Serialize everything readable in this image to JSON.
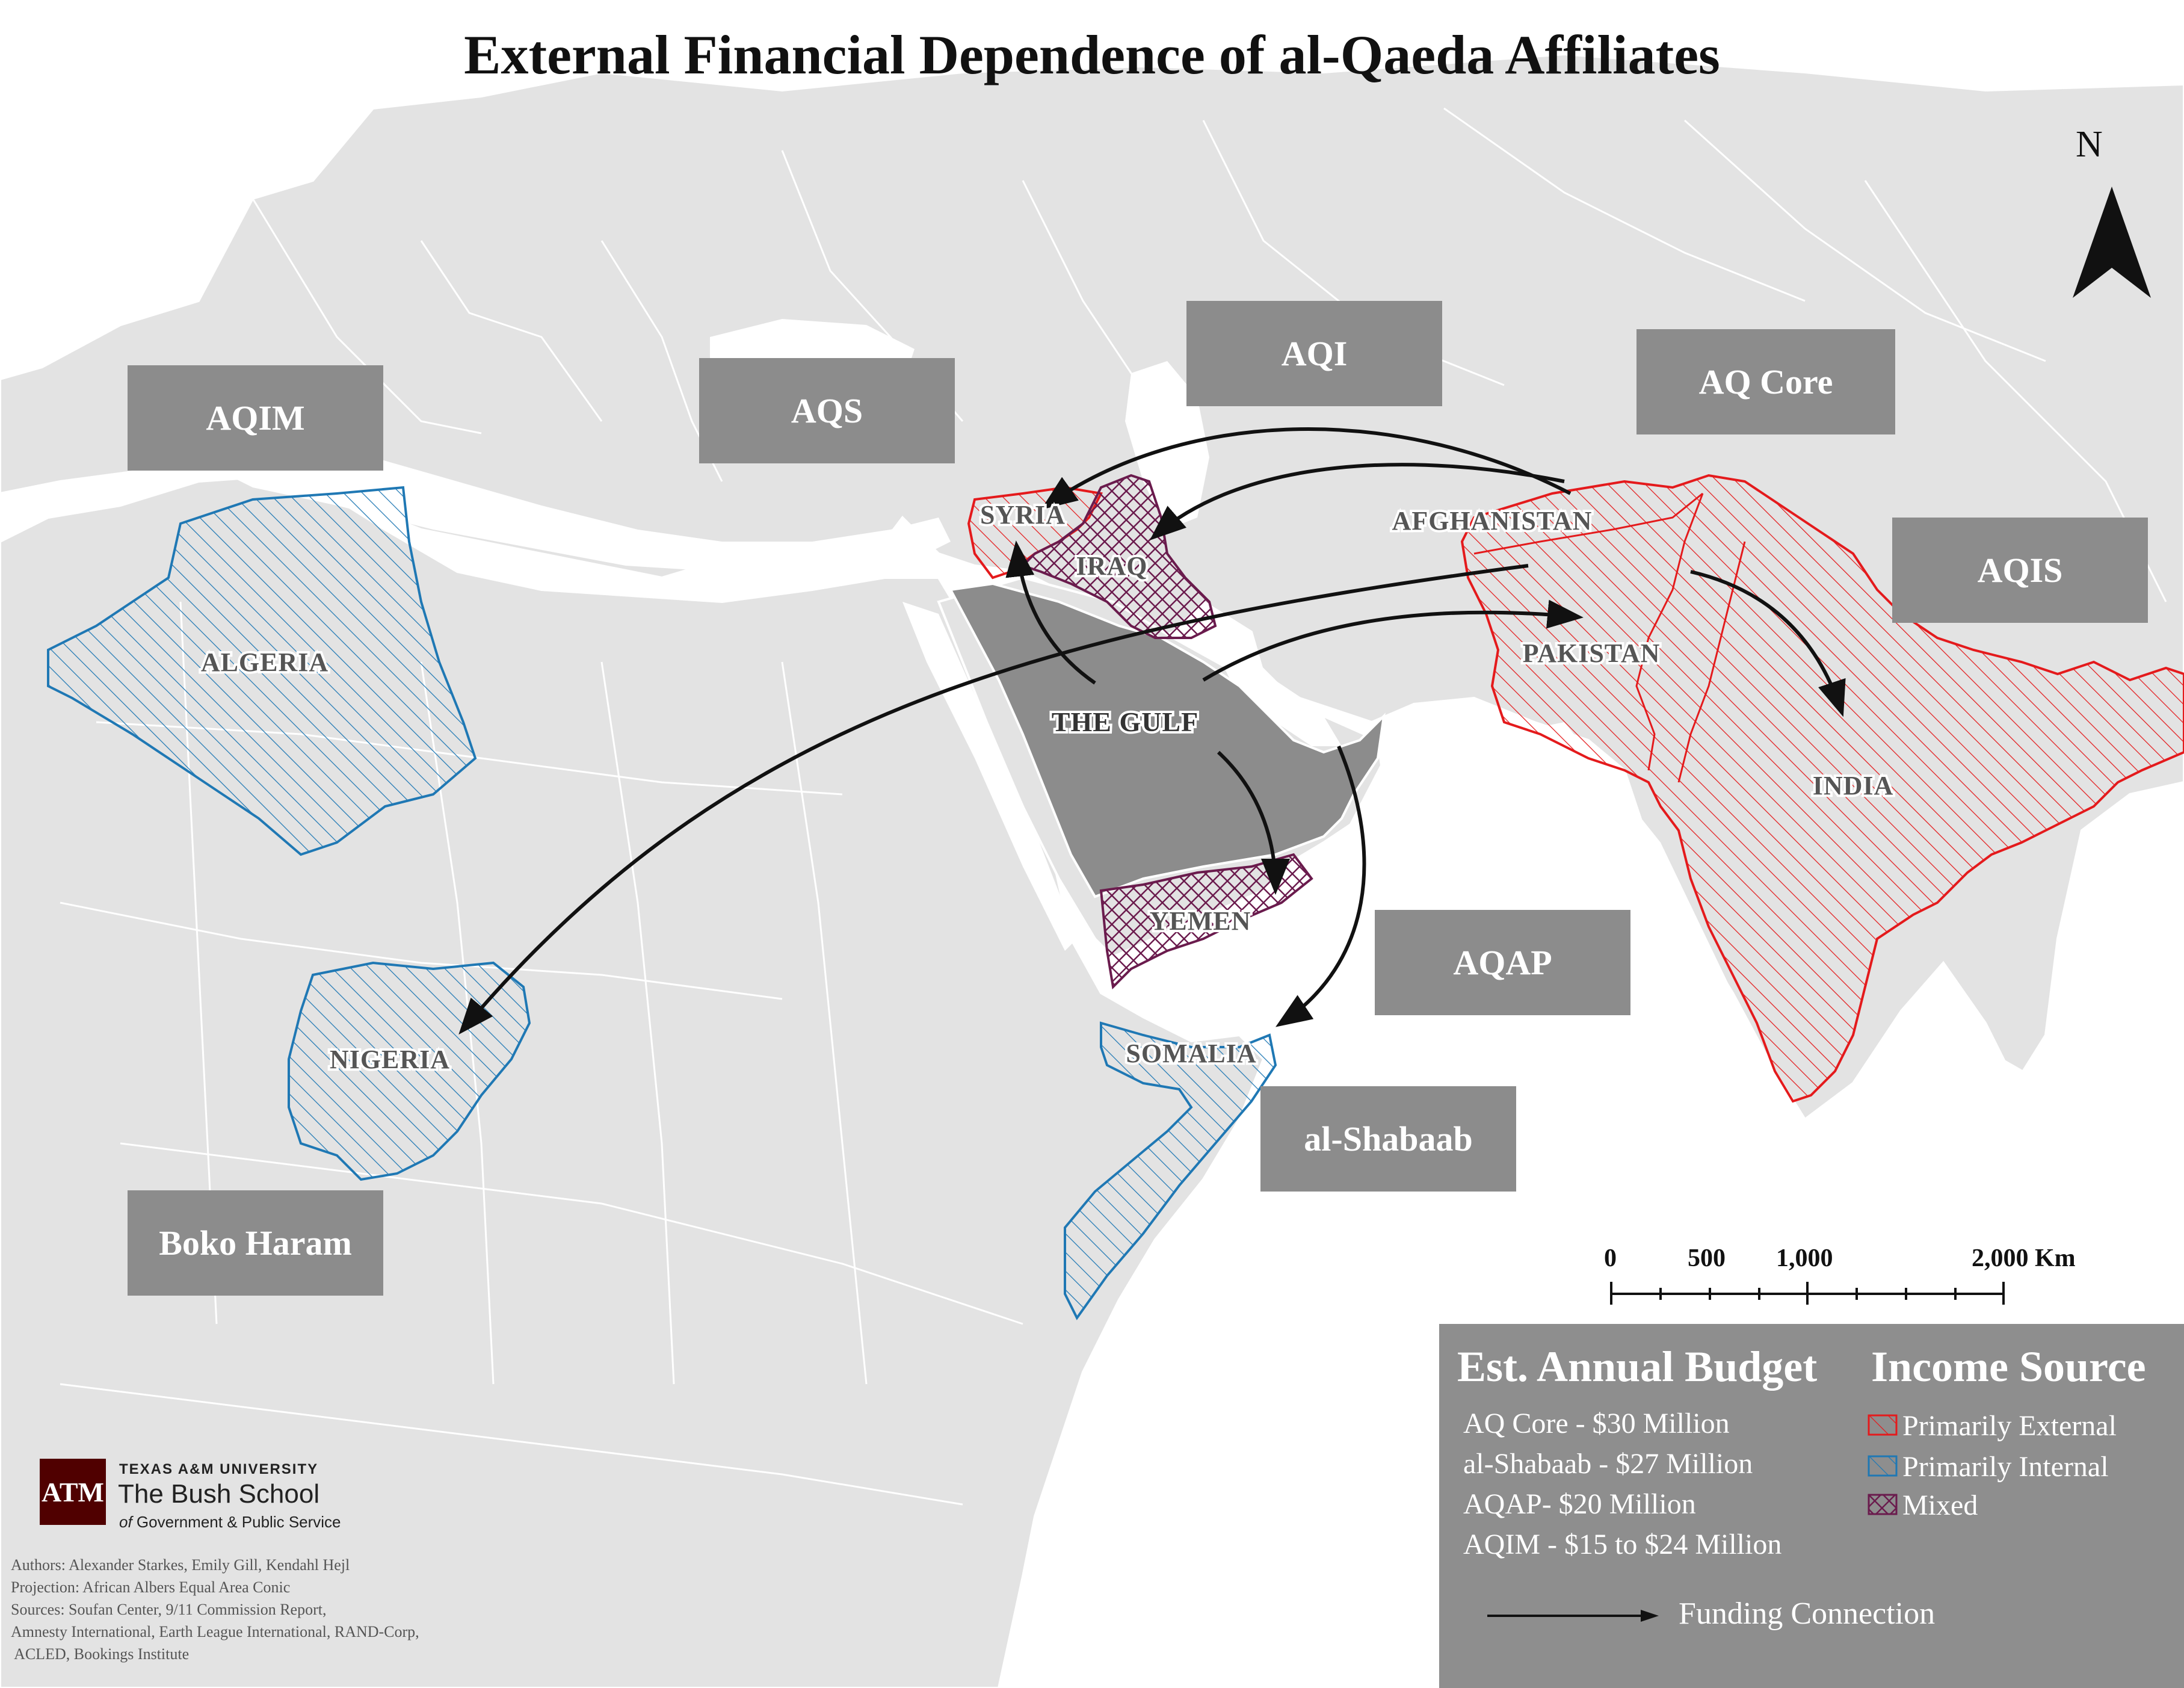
{
  "title": "External Financial Dependence of al-Qaeda Affiliates",
  "colors": {
    "land": "#e3e3e3",
    "border": "#ffffff",
    "water": "#ffffff",
    "gulf_region": "#8c8c8c",
    "external": "#e41a1c",
    "internal": "#1f78b4",
    "mixed": "#6a1b4d",
    "label_box": "#8c8c8c",
    "legend_bg": "#8e8e8e"
  },
  "group_labels": [
    {
      "id": "aqim",
      "text": "AQIM"
    },
    {
      "id": "aqs",
      "text": "AQS"
    },
    {
      "id": "aqi",
      "text": "AQI"
    },
    {
      "id": "aq_core",
      "text": "AQ Core"
    },
    {
      "id": "aqis",
      "text": "AQIS"
    },
    {
      "id": "aqap",
      "text": "AQAP"
    },
    {
      "id": "al_shabaab",
      "text": "al-Shabaab"
    },
    {
      "id": "boko_haram",
      "text": "Boko Haram"
    }
  ],
  "countries": [
    {
      "id": "algeria",
      "name": "ALGERIA",
      "income_source": "Primarily Internal"
    },
    {
      "id": "nigeria",
      "name": "NIGERIA",
      "income_source": "Primarily Internal"
    },
    {
      "id": "somalia",
      "name": "SOMALIA",
      "income_source": "Primarily Internal"
    },
    {
      "id": "syria",
      "name": "SYRIA",
      "income_source": "Primarily External"
    },
    {
      "id": "iraq",
      "name": "IRAQ",
      "income_source": "Mixed"
    },
    {
      "id": "yemen",
      "name": "YEMEN",
      "income_source": "Mixed"
    },
    {
      "id": "afghanistan",
      "name": "AFGHANISTAN",
      "income_source": "Primarily External"
    },
    {
      "id": "pakistan",
      "name": "PAKISTAN",
      "income_source": "Primarily External"
    },
    {
      "id": "india",
      "name": "INDIA",
      "income_source": "Primarily External"
    },
    {
      "id": "the_gulf",
      "name": "THE GULF",
      "income_source": ""
    }
  ],
  "funding_connections": [
    {
      "from": "AFGHANISTAN",
      "to": "SYRIA"
    },
    {
      "from": "AFGHANISTAN",
      "to": "IRAQ"
    },
    {
      "from": "AFGHANISTAN",
      "to": "NIGERIA"
    },
    {
      "from": "AFGHANISTAN",
      "to": "INDIA"
    },
    {
      "from": "THE GULF",
      "to": "SYRIA"
    },
    {
      "from": "THE GULF",
      "to": "PAKISTAN"
    },
    {
      "from": "THE GULF",
      "to": "YEMEN"
    },
    {
      "from": "THE GULF",
      "to": "SOMALIA"
    }
  ],
  "north_label": "N",
  "scale_bar": {
    "ticks": [
      "0",
      "500",
      "1,000",
      "2,000 Km"
    ],
    "tick_values_km": [
      0,
      500,
      1000,
      2000
    ]
  },
  "legend": {
    "budget_heading": "Est. Annual Budget",
    "income_heading": "Income Source",
    "budgets": [
      "AQ Core - $30 Million",
      "al-Shabaab - $27 Million",
      "AQAP- $20 Million",
      "AQIM - $15 to $24 Million"
    ],
    "income_sources": [
      {
        "label": "Primarily External",
        "pattern": "external"
      },
      {
        "label": "Primarily Internal",
        "pattern": "internal"
      },
      {
        "label": "Mixed",
        "pattern": "mixed"
      }
    ],
    "funding_label": "Funding Connection"
  },
  "logo": {
    "mark": "ATM",
    "university": "TEXAS A&M UNIVERSITY",
    "school": "The Bush School",
    "subtitle_of": "of",
    "subtitle": "Government & Public Service"
  },
  "credits": [
    "Authors: Alexander Starkes, Emily Gill, Kendahl Hejl",
    "Projection: African Albers Equal Area Conic",
    "Sources: Soufan Center, 9/11 Commission Report,",
    "Amnesty International, Earth League International, RAND-Corp,",
    " ACLED, Bookings Institute"
  ]
}
